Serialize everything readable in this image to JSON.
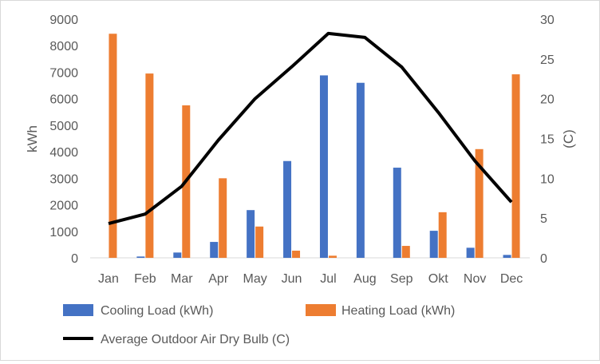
{
  "chart_data": {
    "type": "bar",
    "title": "",
    "categories": [
      "Jan",
      "Feb",
      "Mar",
      "Apr",
      "May",
      "Jun",
      "Jul",
      "Aug",
      "Sep",
      "Okt",
      "Nov",
      "Dec"
    ],
    "series": [
      {
        "name": "Cooling Load (kWh)",
        "type": "bar",
        "axis": "left",
        "color": "#4472c4",
        "values": [
          0,
          50,
          200,
          600,
          1800,
          3650,
          6880,
          6600,
          3400,
          1020,
          380,
          110
        ]
      },
      {
        "name": "Heating Load (kWh)",
        "type": "bar",
        "axis": "left",
        "color": "#ed7d31",
        "values": [
          8450,
          6950,
          5750,
          3000,
          1180,
          270,
          80,
          0,
          450,
          1720,
          4100,
          6920
        ]
      },
      {
        "name": "Average Outdoor Air Dry Bulb (C)",
        "type": "line",
        "axis": "right",
        "color": "#000000",
        "values": [
          4.3,
          5.5,
          9.0,
          14.8,
          20.0,
          24.0,
          28.2,
          27.7,
          24.0,
          18.3,
          12.2,
          7.0
        ]
      }
    ],
    "ylabel": "kWh",
    "ylim": [
      0,
      9000
    ],
    "yticks": [
      "0",
      "1000",
      "2000",
      "3000",
      "4000",
      "5000",
      "6000",
      "7000",
      "8000",
      "9000"
    ],
    "y2label": "(C)",
    "y2lim": [
      0,
      30
    ],
    "y2ticks": [
      "0",
      "5",
      "10",
      "15",
      "20",
      "25",
      "30"
    ],
    "grid": false,
    "legend_position": "bottom"
  }
}
